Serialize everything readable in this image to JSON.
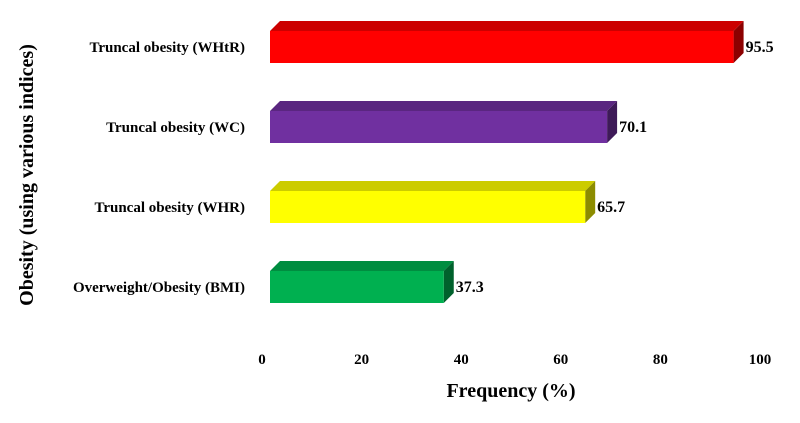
{
  "chart_data": {
    "type": "bar",
    "orientation": "horizontal",
    "style": "3d",
    "title": "",
    "xlabel": "Frequency (%)",
    "ylabel": "Obesity (using various indices)",
    "xlim": [
      0,
      100
    ],
    "xticks": [
      "0",
      "20",
      "40",
      "60",
      "80",
      "100"
    ],
    "grid": false,
    "legend": "none",
    "categories": [
      "Truncal obesity (WHtR)",
      "Truncal obesity (WC)",
      "Truncal obesity (WHR)",
      "Overweight/Obesity (BMI)"
    ],
    "values": [
      95.5,
      70.1,
      65.7,
      37.3
    ],
    "value_labels": [
      "95.5",
      "70.1",
      "65.7",
      "37.3"
    ],
    "colors": [
      "#ff0000",
      "#7030a0",
      "#ffff00",
      "#00b050"
    ]
  }
}
